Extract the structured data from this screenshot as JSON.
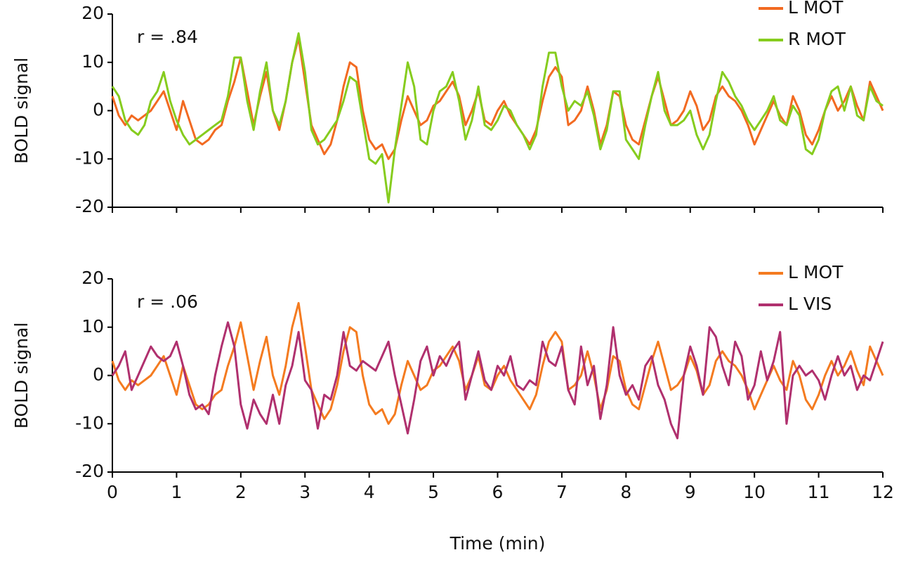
{
  "chart_data": [
    {
      "type": "line",
      "annotation": "r = .84",
      "y_label": "BOLD signal",
      "legend": "upper right",
      "show_xtick_labels": false,
      "x": [
        0,
        0.1,
        0.2,
        0.3,
        0.4,
        0.5,
        0.6,
        0.7,
        0.8,
        0.9,
        1,
        1.1,
        1.2,
        1.3,
        1.4,
        1.5,
        1.6,
        1.7,
        1.8,
        1.9,
        2,
        2.1,
        2.2,
        2.3,
        2.4,
        2.5,
        2.6,
        2.7,
        2.8,
        2.9,
        3,
        3.1,
        3.2,
        3.3,
        3.4,
        3.5,
        3.6,
        3.7,
        3.8,
        3.9,
        4,
        4.1,
        4.2,
        4.3,
        4.4,
        4.5,
        4.6,
        4.7,
        4.8,
        4.9,
        5,
        5.1,
        5.2,
        5.3,
        5.4,
        5.5,
        5.6,
        5.7,
        5.8,
        5.9,
        6,
        6.1,
        6.2,
        6.3,
        6.4,
        6.5,
        6.6,
        6.7,
        6.8,
        6.9,
        7,
        7.1,
        7.2,
        7.3,
        7.4,
        7.5,
        7.6,
        7.7,
        7.8,
        7.9,
        8,
        8.1,
        8.2,
        8.3,
        8.4,
        8.5,
        8.6,
        8.7,
        8.8,
        8.9,
        9,
        9.1,
        9.2,
        9.3,
        9.4,
        9.5,
        9.6,
        9.7,
        9.8,
        9.9,
        10,
        10.1,
        10.2,
        10.3,
        10.4,
        10.5,
        10.6,
        10.7,
        10.8,
        10.9,
        11,
        11.1,
        11.2,
        11.3,
        11.4,
        11.5,
        11.6,
        11.7,
        11.8,
        11.9,
        12
      ],
      "xlim": [
        0,
        12
      ],
      "xticks": [
        0,
        1,
        2,
        3,
        4,
        5,
        6,
        7,
        8,
        9,
        10,
        11,
        12
      ],
      "ylim": [
        -20,
        20
      ],
      "yticks": [
        -20,
        -10,
        0,
        10,
        20
      ],
      "series": [
        {
          "name": "L MOT",
          "color": "#f26a21",
          "values": [
            3,
            -1,
            -3,
            -1,
            -2,
            -1,
            0,
            2,
            4,
            0,
            -4,
            2,
            -2,
            -6,
            -7,
            -6,
            -4,
            -3,
            2,
            6,
            11,
            4,
            -3,
            3,
            8,
            0,
            -4,
            2,
            10,
            15,
            6,
            -3,
            -6,
            -9,
            -7,
            -2,
            5,
            10,
            9,
            0,
            -6,
            -8,
            -7,
            -10,
            -8,
            -2,
            3,
            0,
            -3,
            -2,
            1,
            2,
            4,
            6,
            3,
            -3,
            0,
            4,
            -2,
            -3,
            0,
            2,
            -1,
            -3,
            -5,
            -7,
            -4,
            2,
            7,
            9,
            7,
            -3,
            -2,
            0,
            5,
            0,
            -7,
            -3,
            4,
            3,
            -3,
            -6,
            -7,
            -2,
            3,
            7,
            2,
            -3,
            -2,
            0,
            4,
            1,
            -4,
            -2,
            3,
            5,
            3,
            2,
            0,
            -3,
            -7,
            -4,
            -1,
            2,
            -1,
            -3,
            3,
            0,
            -5,
            -7,
            -4,
            0,
            3,
            0,
            2,
            5,
            1,
            -2,
            6,
            3,
            0
          ]
        },
        {
          "name": "R MOT",
          "color": "#86cc1e",
          "values": [
            5,
            3,
            -2,
            -4,
            -5,
            -3,
            2,
            4,
            8,
            2,
            -2,
            -5,
            -7,
            -6,
            -5,
            -4,
            -3,
            -2,
            3,
            11,
            11,
            2,
            -4,
            4,
            10,
            0,
            -3,
            2,
            10,
            16,
            8,
            -4,
            -7,
            -6,
            -4,
            -2,
            2,
            7,
            6,
            -2,
            -10,
            -11,
            -9,
            -19,
            -8,
            1,
            10,
            5,
            -6,
            -7,
            0,
            4,
            5,
            8,
            2,
            -6,
            -2,
            5,
            -3,
            -4,
            -2,
            1,
            0,
            -3,
            -5,
            -8,
            -5,
            5,
            12,
            12,
            5,
            0,
            2,
            1,
            4,
            -1,
            -8,
            -4,
            4,
            4,
            -6,
            -8,
            -10,
            -3,
            3,
            8,
            0,
            -3,
            -3,
            -2,
            0,
            -5,
            -8,
            -5,
            2,
            8,
            6,
            3,
            1,
            -2,
            -4,
            -2,
            0,
            3,
            -2,
            -3,
            1,
            -1,
            -8,
            -9,
            -6,
            0,
            4,
            5,
            0,
            5,
            -1,
            -2,
            5,
            2,
            1
          ]
        }
      ]
    },
    {
      "type": "line",
      "annotation": "r = .06",
      "y_label": "BOLD signal",
      "x_label": "Time (min)",
      "legend": "upper right",
      "x": [
        0,
        0.1,
        0.2,
        0.3,
        0.4,
        0.5,
        0.6,
        0.7,
        0.8,
        0.9,
        1,
        1.1,
        1.2,
        1.3,
        1.4,
        1.5,
        1.6,
        1.7,
        1.8,
        1.9,
        2,
        2.1,
        2.2,
        2.3,
        2.4,
        2.5,
        2.6,
        2.7,
        2.8,
        2.9,
        3,
        3.1,
        3.2,
        3.3,
        3.4,
        3.5,
        3.6,
        3.7,
        3.8,
        3.9,
        4,
        4.1,
        4.2,
        4.3,
        4.4,
        4.5,
        4.6,
        4.7,
        4.8,
        4.9,
        5,
        5.1,
        5.2,
        5.3,
        5.4,
        5.5,
        5.6,
        5.7,
        5.8,
        5.9,
        6,
        6.1,
        6.2,
        6.3,
        6.4,
        6.5,
        6.6,
        6.7,
        6.8,
        6.9,
        7,
        7.1,
        7.2,
        7.3,
        7.4,
        7.5,
        7.6,
        7.7,
        7.8,
        7.9,
        8,
        8.1,
        8.2,
        8.3,
        8.4,
        8.5,
        8.6,
        8.7,
        8.8,
        8.9,
        9,
        9.1,
        9.2,
        9.3,
        9.4,
        9.5,
        9.6,
        9.7,
        9.8,
        9.9,
        10,
        10.1,
        10.2,
        10.3,
        10.4,
        10.5,
        10.6,
        10.7,
        10.8,
        10.9,
        11,
        11.1,
        11.2,
        11.3,
        11.4,
        11.5,
        11.6,
        11.7,
        11.8,
        11.9,
        12
      ],
      "xlim": [
        0,
        12
      ],
      "xticks": [
        0,
        1,
        2,
        3,
        4,
        5,
        6,
        7,
        8,
        9,
        10,
        11,
        12
      ],
      "ylim": [
        -20,
        20
      ],
      "yticks": [
        -20,
        -10,
        0,
        10,
        20
      ],
      "series": [
        {
          "name": "L MOT",
          "color": "#f47b20",
          "values": [
            3,
            -1,
            -3,
            -1,
            -2,
            -1,
            0,
            2,
            4,
            0,
            -4,
            2,
            -2,
            -6,
            -7,
            -6,
            -4,
            -3,
            2,
            6,
            11,
            4,
            -3,
            3,
            8,
            0,
            -4,
            2,
            10,
            15,
            6,
            -3,
            -6,
            -9,
            -7,
            -2,
            5,
            10,
            9,
            0,
            -6,
            -8,
            -7,
            -10,
            -8,
            -2,
            3,
            0,
            -3,
            -2,
            1,
            2,
            4,
            6,
            3,
            -3,
            0,
            4,
            -2,
            -3,
            0,
            2,
            -1,
            -3,
            -5,
            -7,
            -4,
            2,
            7,
            9,
            7,
            -3,
            -2,
            0,
            5,
            0,
            -7,
            -3,
            4,
            3,
            -3,
            -6,
            -7,
            -2,
            3,
            7,
            2,
            -3,
            -2,
            0,
            4,
            1,
            -4,
            -2,
            3,
            5,
            3,
            2,
            0,
            -3,
            -7,
            -4,
            -1,
            2,
            -1,
            -3,
            3,
            0,
            -5,
            -7,
            -4,
            0,
            3,
            0,
            2,
            5,
            1,
            -2,
            6,
            3,
            0
          ]
        },
        {
          "name": "L VIS",
          "color": "#b0306e",
          "values": [
            0,
            2,
            5,
            -3,
            0,
            3,
            6,
            4,
            3,
            4,
            7,
            2,
            -4,
            -7,
            -6,
            -8,
            0,
            6,
            11,
            6,
            -6,
            -11,
            -5,
            -8,
            -10,
            -4,
            -10,
            -2,
            2,
            9,
            -1,
            -3,
            -11,
            -4,
            -5,
            0,
            9,
            2,
            1,
            3,
            2,
            1,
            4,
            7,
            0,
            -6,
            -12,
            -5,
            3,
            6,
            0,
            4,
            2,
            5,
            7,
            -5,
            0,
            5,
            -1,
            -3,
            2,
            0,
            4,
            -2,
            -3,
            -1,
            -2,
            7,
            3,
            2,
            6,
            -3,
            -6,
            6,
            -2,
            2,
            -9,
            -2,
            10,
            0,
            -4,
            -2,
            -5,
            2,
            4,
            -2,
            -5,
            -10,
            -13,
            0,
            6,
            2,
            -4,
            10,
            8,
            2,
            -2,
            7,
            4,
            -5,
            -2,
            5,
            -1,
            3,
            9,
            -10,
            0,
            2,
            0,
            1,
            -1,
            -5,
            0,
            4,
            0,
            2,
            -3,
            0,
            -1,
            3,
            7
          ]
        }
      ]
    }
  ]
}
